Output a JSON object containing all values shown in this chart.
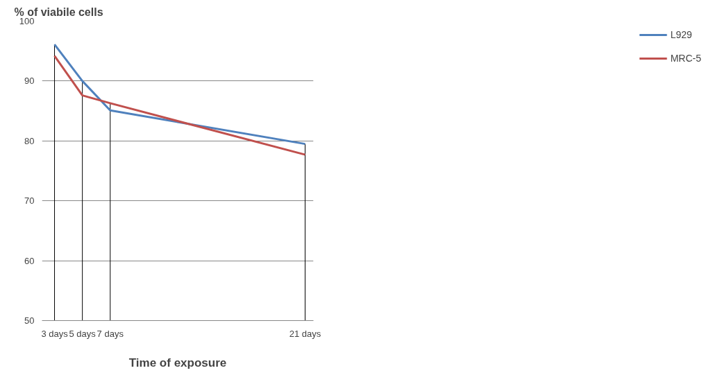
{
  "chart_data": {
    "type": "line",
    "ylabel": "% of viabile cells",
    "xlabel": "Time of exposure",
    "x": [
      3,
      5,
      7,
      21
    ],
    "xlim": [
      2.1,
      21.6
    ],
    "xticks": [
      {
        "value": 3,
        "label": "3 days"
      },
      {
        "value": 5,
        "label": "5 days"
      },
      {
        "value": 7,
        "label": "7 days"
      },
      {
        "value": 21,
        "label": "21 days"
      }
    ],
    "ylim": [
      50,
      100
    ],
    "yticks": [
      50,
      60,
      70,
      80,
      90,
      100
    ],
    "series": [
      {
        "name": "L929",
        "color": "#4f81bd",
        "values": [
          96.1,
          90.0,
          85.1,
          79.5
        ]
      },
      {
        "name": "MRC-5",
        "color": "#c0504d",
        "values": [
          94.2,
          87.6,
          86.3,
          77.7
        ]
      }
    ],
    "ref_lines": [
      {
        "axis": "x",
        "value": 3,
        "label": null,
        "color": "#000000"
      },
      {
        "axis": "x",
        "value": 5,
        "label": null,
        "color": "#000000"
      },
      {
        "axis": "x",
        "value": 7,
        "label": null,
        "color": "#000000"
      },
      {
        "axis": "x",
        "value": 21,
        "label": null,
        "color": "#000000"
      }
    ],
    "grid": "y",
    "legend": "right",
    "marker": "none",
    "line_style": "solid"
  }
}
